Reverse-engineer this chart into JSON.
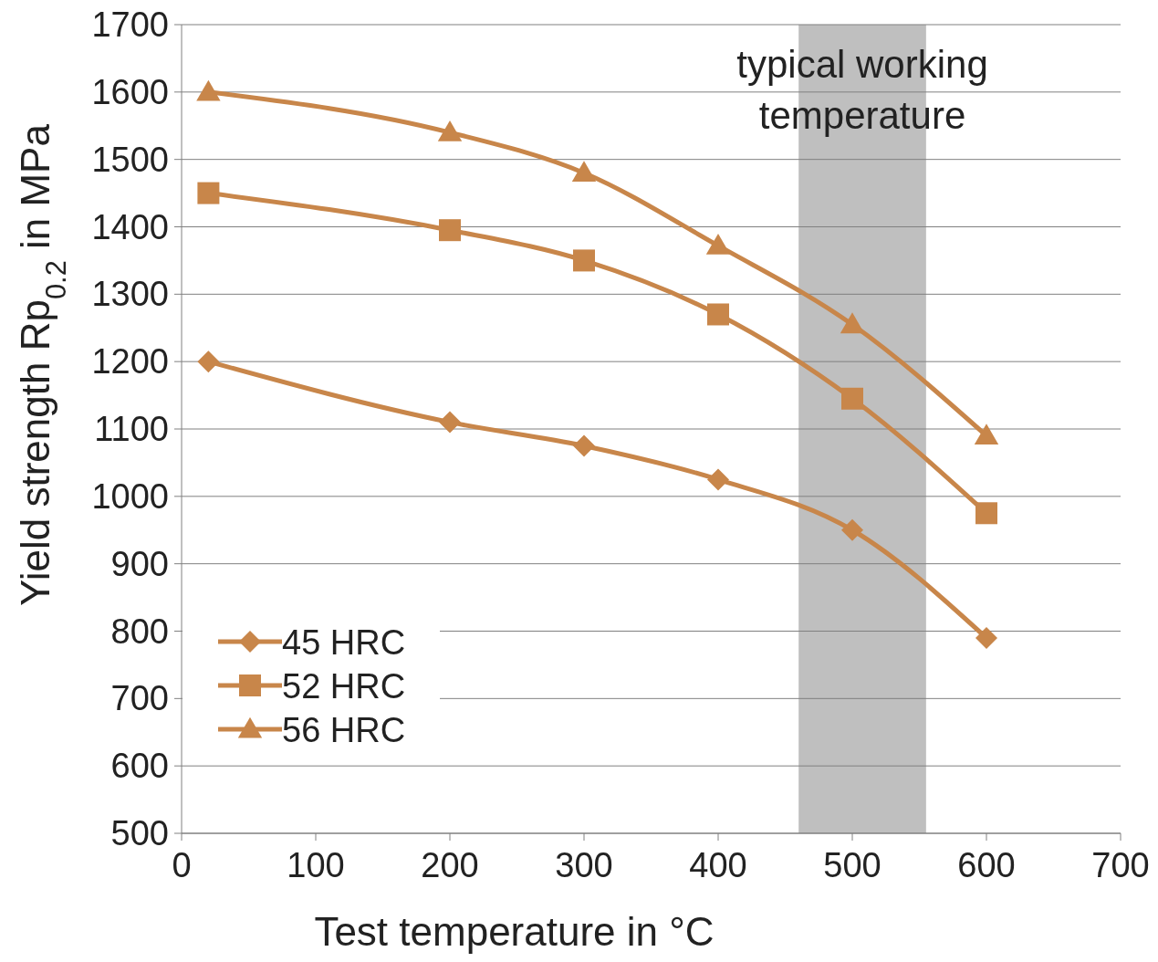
{
  "chart_data": {
    "type": "line",
    "xlabel": "Test temperature in °C",
    "ylabel": "Yield strength Rp$_{0.2}$ in MPa",
    "x": [
      20,
      200,
      300,
      400,
      500,
      600
    ],
    "series": [
      {
        "name": "45 HRC",
        "color": "#c8864a",
        "marker": "diamond",
        "values": [
          1200,
          1110,
          1075,
          1025,
          950,
          790
        ]
      },
      {
        "name": "52 HRC",
        "color": "#c8864a",
        "marker": "square",
        "values": [
          1450,
          1395,
          1350,
          1270,
          1145,
          975
        ]
      },
      {
        "name": "56 HRC",
        "color": "#c8864a",
        "marker": "triangle",
        "values": [
          1600,
          1540,
          1480,
          1372,
          1255,
          1090
        ]
      }
    ],
    "xlim": [
      0,
      700
    ],
    "xticks": [
      0,
      100,
      200,
      300,
      400,
      500,
      600,
      700
    ],
    "ylim": [
      500,
      1700
    ],
    "yticks": [
      500,
      600,
      700,
      800,
      900,
      1000,
      1100,
      1200,
      1300,
      1400,
      1500,
      1600,
      1700
    ],
    "bands": [
      {
        "axis": "x",
        "from": 460,
        "to": 555,
        "label": "typical working temperature",
        "color": "#bfbfbf"
      }
    ],
    "grid": "y",
    "legend": "bottom left"
  }
}
